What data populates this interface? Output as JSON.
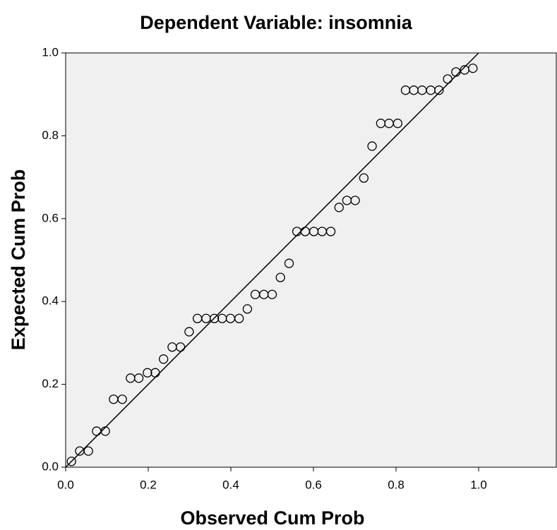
{
  "chart_data": {
    "type": "scatter",
    "title": "Dependent Variable: insomnia",
    "x_label": "Observed Cum Prob",
    "y_label": "Expected Cum Prob",
    "xlim": [
      0,
      1.188
    ],
    "ylim": [
      0,
      1
    ],
    "xticks": [
      {
        "value": 0,
        "label": "0.0"
      },
      0.2,
      0.4,
      0.6,
      0.8,
      {
        "value": 1,
        "label": "1.0"
      }
    ],
    "yticks": [
      {
        "value": 0,
        "label": "0.0"
      },
      0.2,
      0.4,
      0.6,
      0.8,
      {
        "value": 1,
        "label": "1.0"
      }
    ],
    "background": "#f0f0f0",
    "marker_color": "#000000",
    "line_color": "#000000",
    "x": [
      0.014,
      0.034,
      0.055,
      0.075,
      0.096,
      0.116,
      0.137,
      0.157,
      0.177,
      0.198,
      0.217,
      0.237,
      0.258,
      0.278,
      0.299,
      0.319,
      0.34,
      0.36,
      0.379,
      0.399,
      0.42,
      0.44,
      0.459,
      0.48,
      0.5,
      0.52,
      0.541,
      0.56,
      0.58,
      0.601,
      0.621,
      0.642,
      0.662,
      0.681,
      0.701,
      0.722,
      0.742,
      0.763,
      0.783,
      0.804,
      0.823,
      0.843,
      0.863,
      0.884,
      0.904,
      0.925,
      0.945,
      0.966,
      0.986
    ],
    "y": [
      0.014,
      0.039,
      0.039,
      0.087,
      0.087,
      0.164,
      0.164,
      0.215,
      0.215,
      0.228,
      0.228,
      0.261,
      0.29,
      0.29,
      0.327,
      0.359,
      0.359,
      0.359,
      0.359,
      0.359,
      0.359,
      0.382,
      0.417,
      0.417,
      0.417,
      0.458,
      0.492,
      0.569,
      0.569,
      0.569,
      0.569,
      0.569,
      0.627,
      0.644,
      0.644,
      0.698,
      0.775,
      0.83,
      0.83,
      0.83,
      0.91,
      0.91,
      0.91,
      0.91,
      0.91,
      0.937,
      0.954,
      0.959,
      0.963
    ]
  }
}
